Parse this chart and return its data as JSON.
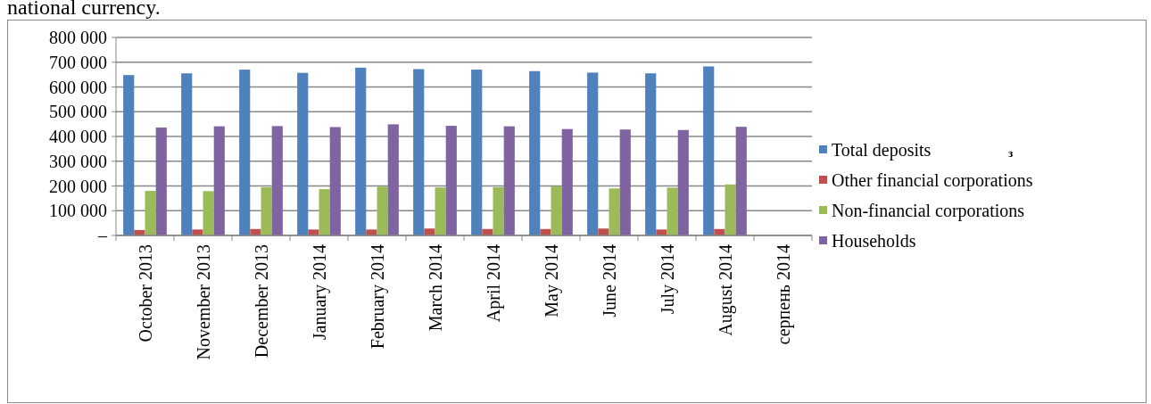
{
  "chart_data": {
    "type": "bar",
    "title": "national currency.",
    "categories": [
      "October 2013",
      "November 2013",
      "December 2013",
      "January 2014",
      "February 2014",
      "March 2014",
      "April 2014",
      "May 2014",
      "June 2014",
      "July 2014",
      "August 2014",
      "серпень 2014"
    ],
    "series": [
      {
        "name": "Total deposits",
        "color": "#4f81bd",
        "values": [
          648000,
          655000,
          670000,
          657000,
          678000,
          672000,
          670000,
          664000,
          658000,
          655000,
          683000,
          null
        ]
      },
      {
        "name": "Other financial corporations",
        "color": "#c0504d",
        "values": [
          22000,
          24000,
          26000,
          24000,
          24000,
          28000,
          26000,
          26000,
          28000,
          24000,
          26000,
          null
        ]
      },
      {
        "name": "Non-financial corporations",
        "color": "#9bbb59",
        "values": [
          180000,
          179000,
          195000,
          187000,
          197000,
          194000,
          195000,
          199000,
          190000,
          193000,
          206000,
          null
        ]
      },
      {
        "name": "Households",
        "color": "#8064a2",
        "values": [
          436000,
          441000,
          442000,
          438000,
          449000,
          443000,
          441000,
          430000,
          428000,
          426000,
          439000,
          null
        ]
      }
    ],
    "ylim": [
      0,
      800000
    ],
    "yticks": [
      {
        "value": 0,
        "label": "–"
      },
      {
        "value": 100000,
        "label": "100 000"
      },
      {
        "value": 200000,
        "label": "200 000"
      },
      {
        "value": 300000,
        "label": "300 000"
      },
      {
        "value": 400000,
        "label": "400 000"
      },
      {
        "value": 500000,
        "label": "500 000"
      },
      {
        "value": 600000,
        "label": "600 000"
      },
      {
        "value": 700000,
        "label": "700 000"
      },
      {
        "value": 800000,
        "label": "800 000"
      }
    ],
    "grid": "y",
    "legend": "right",
    "annotations": [
      "з"
    ]
  }
}
